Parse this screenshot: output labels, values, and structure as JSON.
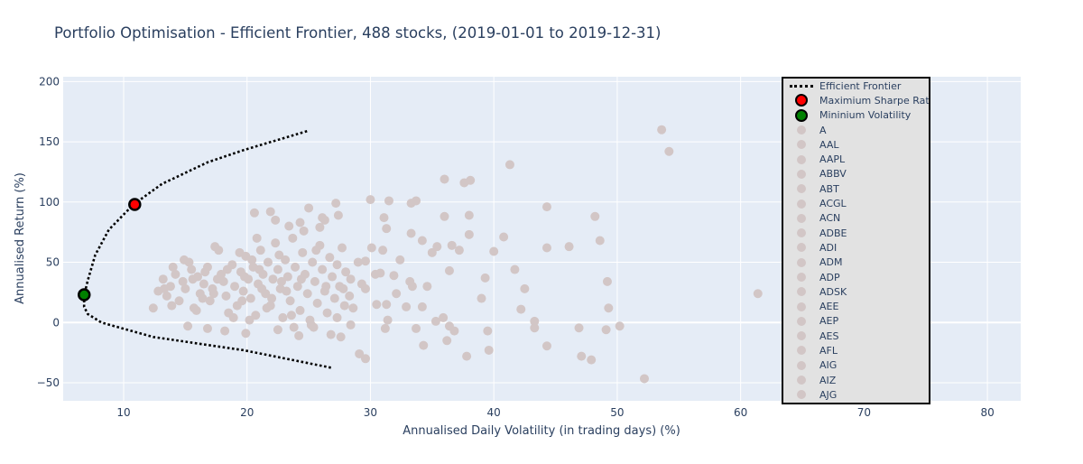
{
  "chart_data": {
    "type": "scatter",
    "title": "Portfolio Optimisation - Efficient Frontier, 488 stocks, (2019-01-01 to 2019-12-31)",
    "xlabel": "Annualised Daily Volatility (in trading days) (%)",
    "ylabel": "Annualised Return (%)",
    "xlim": [
      5.1,
      82.7
    ],
    "ylim": [
      -65,
      204
    ],
    "xticks": [
      10,
      20,
      30,
      40,
      50,
      60,
      70,
      80
    ],
    "yticks": [
      -50,
      0,
      50,
      100,
      150,
      200
    ],
    "grid": true,
    "legend_position": "top-right",
    "colors": {
      "plot_bg": "#e5ecf6",
      "stock": "#d2c6c6",
      "frontier": "#000000",
      "max_sharpe": "#ff0000",
      "min_vol": "#008000",
      "text": "#2a3f5f"
    },
    "efficient_frontier": {
      "name": "Efficient Frontier",
      "points": [
        [
          26.8,
          -37.5
        ],
        [
          19.7,
          -23
        ],
        [
          12.4,
          -12
        ],
        [
          8.2,
          0
        ],
        [
          7.1,
          7
        ],
        [
          6.8,
          13
        ],
        [
          6.8,
          22.5
        ],
        [
          7.1,
          35
        ],
        [
          7.7,
          56
        ],
        [
          8.8,
          77
        ],
        [
          10.8,
          98
        ],
        [
          13.1,
          115
        ],
        [
          16.8,
          133
        ],
        [
          19.7,
          143
        ],
        [
          24.9,
          159
        ]
      ]
    },
    "max_sharpe": {
      "name": "Maximium Sharpe Ratio",
      "x": 10.9,
      "y": 98
    },
    "min_volatility": {
      "name": "Mininium Volatility",
      "x": 6.8,
      "y": 23
    },
    "stocks_legend": [
      "A",
      "AAL",
      "AAPL",
      "ABBV",
      "ABT",
      "ACGL",
      "ACN",
      "ADBE",
      "ADI",
      "ADM",
      "ADP",
      "ADSK",
      "AEE",
      "AEP",
      "AES",
      "AFL",
      "AIG",
      "AIZ",
      "AJG"
    ],
    "stock_points": [
      [
        53.6,
        160
      ],
      [
        54.2,
        142
      ],
      [
        41.3,
        131
      ],
      [
        61.4,
        24
      ],
      [
        52.2,
        -46.6
      ],
      [
        36,
        119
      ],
      [
        38.1,
        118
      ],
      [
        37.6,
        116
      ],
      [
        30,
        102
      ],
      [
        31.5,
        101
      ],
      [
        33.7,
        101
      ],
      [
        33.3,
        99
      ],
      [
        44.3,
        96
      ],
      [
        48.2,
        88
      ],
      [
        38,
        89
      ],
      [
        36,
        88
      ],
      [
        38,
        73
      ],
      [
        40.8,
        71
      ],
      [
        48.6,
        68
      ],
      [
        40,
        59
      ],
      [
        46.1,
        63
      ],
      [
        44.3,
        62
      ],
      [
        41.7,
        44
      ],
      [
        42.5,
        28
      ],
      [
        42.2,
        11
      ],
      [
        43.3,
        1
      ],
      [
        43.3,
        -4.5
      ],
      [
        49.3,
        12
      ],
      [
        49.2,
        34
      ],
      [
        46.9,
        -4.5
      ],
      [
        50.2,
        -3
      ],
      [
        49.1,
        -6
      ],
      [
        47.1,
        -28
      ],
      [
        47.9,
        -31
      ],
      [
        44.3,
        -19.5
      ],
      [
        39.6,
        -23
      ],
      [
        37.8,
        -28
      ],
      [
        34.3,
        -19
      ],
      [
        36.2,
        -15
      ],
      [
        29.1,
        -26
      ],
      [
        29.6,
        -30
      ],
      [
        39.5,
        -7
      ],
      [
        36.8,
        -7
      ],
      [
        39,
        20
      ],
      [
        39.3,
        37
      ],
      [
        27.2,
        99
      ],
      [
        25,
        95
      ],
      [
        24.3,
        83
      ],
      [
        22.3,
        85
      ],
      [
        20.6,
        91
      ],
      [
        21.9,
        92
      ],
      [
        26.1,
        87
      ],
      [
        26.3,
        85
      ],
      [
        27.4,
        89
      ],
      [
        25.9,
        79
      ],
      [
        23.4,
        80
      ],
      [
        31.1,
        87
      ],
      [
        31.3,
        78
      ],
      [
        33.3,
        74
      ],
      [
        34.2,
        68
      ],
      [
        35.4,
        63
      ],
      [
        36.6,
        64
      ],
      [
        37.2,
        60
      ],
      [
        35,
        58
      ],
      [
        32.4,
        52
      ],
      [
        30.1,
        62
      ],
      [
        31,
        60
      ],
      [
        29.6,
        51
      ],
      [
        33.2,
        34
      ],
      [
        34.6,
        30
      ],
      [
        36.4,
        43
      ],
      [
        30.4,
        40
      ],
      [
        31.9,
        39
      ],
      [
        30.8,
        41
      ],
      [
        28.4,
        36
      ],
      [
        27.8,
        28
      ],
      [
        29.6,
        28
      ],
      [
        30.5,
        15
      ],
      [
        31.3,
        15
      ],
      [
        32.1,
        24
      ],
      [
        33.4,
        30
      ],
      [
        34.2,
        13
      ],
      [
        32.9,
        13
      ],
      [
        35.9,
        4
      ],
      [
        36.4,
        -3
      ],
      [
        35.3,
        1
      ],
      [
        33.7,
        -5
      ],
      [
        31.4,
        2
      ],
      [
        31.2,
        -5
      ],
      [
        28.4,
        -2
      ],
      [
        27.3,
        4
      ],
      [
        26.8,
        -10
      ],
      [
        27.6,
        -12
      ],
      [
        25.4,
        -4
      ],
      [
        24.2,
        -11
      ],
      [
        22.5,
        -6
      ],
      [
        19.9,
        -9
      ],
      [
        18.2,
        -7
      ],
      [
        16.8,
        -5
      ],
      [
        15.2,
        -3
      ],
      [
        12.4,
        12
      ],
      [
        12.8,
        26
      ],
      [
        13.2,
        36
      ],
      [
        13.5,
        22
      ],
      [
        13.8,
        30
      ],
      [
        14,
        46
      ],
      [
        14.2,
        40
      ],
      [
        14.5,
        18
      ],
      [
        14.8,
        34
      ],
      [
        15,
        28
      ],
      [
        15.3,
        50
      ],
      [
        15.5,
        44
      ],
      [
        15.7,
        12
      ],
      [
        16,
        38
      ],
      [
        16.2,
        24
      ],
      [
        16.5,
        32
      ],
      [
        16.8,
        46
      ],
      [
        17,
        18
      ],
      [
        17.2,
        28
      ],
      [
        17.4,
        63
      ],
      [
        17.7,
        60
      ],
      [
        17.9,
        40
      ],
      [
        18.1,
        34
      ],
      [
        18.3,
        22
      ],
      [
        18.5,
        8
      ],
      [
        18.8,
        48
      ],
      [
        19,
        30
      ],
      [
        19.2,
        14
      ],
      [
        19.5,
        42
      ],
      [
        19.7,
        26
      ],
      [
        19.9,
        55
      ],
      [
        20.1,
        36
      ],
      [
        20.3,
        20
      ],
      [
        20.5,
        46
      ],
      [
        20.7,
        6
      ],
      [
        20.9,
        32
      ],
      [
        21.1,
        60
      ],
      [
        21.3,
        40
      ],
      [
        21.5,
        24
      ],
      [
        21.7,
        50
      ],
      [
        21.9,
        14
      ],
      [
        22.1,
        36
      ],
      [
        22.3,
        66
      ],
      [
        22.5,
        44
      ],
      [
        22.7,
        28
      ],
      [
        22.9,
        4
      ],
      [
        23.1,
        52
      ],
      [
        23.3,
        38
      ],
      [
        23.5,
        18
      ],
      [
        23.7,
        70
      ],
      [
        23.9,
        46
      ],
      [
        24.1,
        30
      ],
      [
        24.3,
        10
      ],
      [
        24.5,
        58
      ],
      [
        24.7,
        40
      ],
      [
        24.9,
        24
      ],
      [
        25.1,
        2
      ],
      [
        25.3,
        50
      ],
      [
        25.5,
        34
      ],
      [
        25.7,
        16
      ],
      [
        25.9,
        64
      ],
      [
        26.1,
        44
      ],
      [
        26.3,
        26
      ],
      [
        26.5,
        8
      ],
      [
        26.7,
        54
      ],
      [
        26.9,
        38
      ],
      [
        27.1,
        20
      ],
      [
        27.3,
        48
      ],
      [
        27.5,
        30
      ],
      [
        27.7,
        62
      ],
      [
        28,
        42
      ],
      [
        28.3,
        22
      ],
      [
        28.6,
        12
      ],
      [
        29,
        50
      ],
      [
        29.3,
        32
      ],
      [
        16.4,
        20
      ],
      [
        17.6,
        36
      ],
      [
        18.9,
        4
      ],
      [
        19.4,
        58
      ],
      [
        20.8,
        70
      ],
      [
        21.6,
        12
      ],
      [
        22.6,
        56
      ],
      [
        23.6,
        6
      ],
      [
        24.6,
        76
      ],
      [
        25.6,
        60
      ],
      [
        14.9,
        52
      ],
      [
        13.3,
        28
      ],
      [
        15.9,
        10
      ],
      [
        21.2,
        28
      ],
      [
        22.8,
        34
      ],
      [
        19.8,
        38
      ],
      [
        18.4,
        44
      ],
      [
        20.4,
        52
      ],
      [
        23.2,
        26
      ],
      [
        24.4,
        36
      ],
      [
        22,
        20
      ],
      [
        21,
        44
      ],
      [
        19.6,
        18
      ],
      [
        26.4,
        30
      ],
      [
        27.9,
        14
      ],
      [
        17.3,
        24
      ],
      [
        16.6,
        42
      ],
      [
        15.6,
        36
      ],
      [
        13.9,
        14
      ],
      [
        20.2,
        2
      ],
      [
        25.2,
        -2
      ],
      [
        23.8,
        -4
      ]
    ]
  }
}
